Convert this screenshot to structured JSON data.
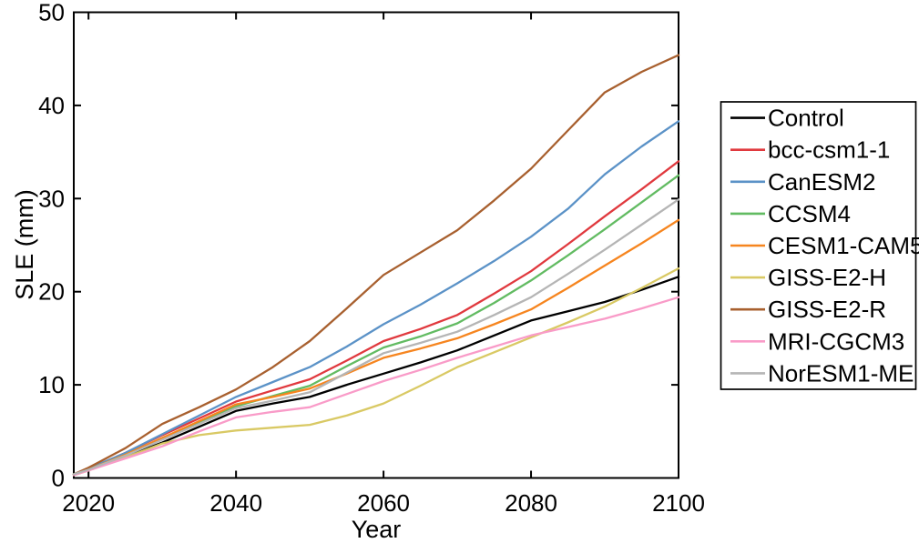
{
  "figure": {
    "background": "#ffffff",
    "axis_color": "#000000"
  },
  "chart_data": {
    "type": "line",
    "title": "",
    "xlabel": "Year",
    "ylabel": "SLE (mm)",
    "xlim": [
      2018,
      2100
    ],
    "ylim": [
      0,
      50
    ],
    "x_ticks": [
      "2020",
      "2040",
      "2060",
      "2080",
      "2100"
    ],
    "x_tick_values": [
      2020,
      2040,
      2060,
      2080,
      2100
    ],
    "y_ticks": [
      "0",
      "10",
      "20",
      "30",
      "40",
      "50"
    ],
    "y_tick_values": [
      0,
      10,
      20,
      30,
      40,
      50
    ],
    "grid": false,
    "legend_position": "outside-right",
    "x": [
      2018,
      2020,
      2025,
      2030,
      2035,
      2040,
      2045,
      2050,
      2055,
      2060,
      2065,
      2070,
      2075,
      2080,
      2085,
      2090,
      2095,
      2100
    ],
    "series": [
      {
        "name": "Control",
        "color": "#000000",
        "values": [
          0.4,
          0.9,
          2.3,
          3.8,
          5.5,
          7.2,
          8.0,
          8.7,
          10.0,
          11.2,
          12.4,
          13.7,
          15.3,
          16.9,
          17.9,
          18.9,
          20.2,
          21.6
        ]
      },
      {
        "name": "bcc-csm1-1",
        "color": "#e0393e",
        "values": [
          0.4,
          1.0,
          2.7,
          4.6,
          6.4,
          8.2,
          9.4,
          10.6,
          12.6,
          14.7,
          16.0,
          17.5,
          19.8,
          22.2,
          25.1,
          28.1,
          31.0,
          34.0
        ]
      },
      {
        "name": "CanESM2",
        "color": "#5b92c7",
        "values": [
          0.4,
          1.0,
          2.7,
          4.7,
          6.7,
          8.7,
          10.3,
          11.9,
          14.1,
          16.5,
          18.6,
          20.9,
          23.3,
          25.9,
          28.9,
          32.6,
          35.6,
          38.3
        ]
      },
      {
        "name": "CCSM4",
        "color": "#62bb62",
        "values": [
          0.4,
          0.9,
          2.5,
          4.3,
          6.0,
          7.7,
          8.8,
          9.9,
          12.0,
          14.0,
          15.2,
          16.6,
          18.8,
          21.2,
          23.9,
          26.7,
          29.6,
          32.5
        ]
      },
      {
        "name": "CESM1-CAM5",
        "color": "#f6851f",
        "values": [
          0.4,
          0.9,
          2.5,
          4.3,
          6.1,
          7.9,
          8.7,
          9.6,
          11.2,
          12.9,
          13.9,
          15.0,
          16.5,
          18.1,
          20.4,
          22.8,
          25.2,
          27.7
        ]
      },
      {
        "name": "GISS-E2-H",
        "color": "#d9c964",
        "values": [
          0.3,
          0.8,
          2.2,
          3.7,
          4.6,
          5.1,
          5.4,
          5.7,
          6.7,
          8.0,
          9.9,
          11.9,
          13.5,
          15.1,
          16.7,
          18.4,
          20.4,
          22.5
        ]
      },
      {
        "name": "GISS-E2-R",
        "color": "#a8602f",
        "values": [
          0.4,
          1.1,
          3.2,
          5.8,
          7.6,
          9.5,
          11.9,
          14.7,
          18.2,
          21.8,
          24.2,
          26.6,
          29.8,
          33.2,
          37.3,
          41.4,
          43.6,
          45.4
        ]
      },
      {
        "name": "MRI-CGCM3",
        "color": "#f99bc8",
        "values": [
          0.3,
          0.8,
          2.1,
          3.4,
          5.0,
          6.5,
          7.1,
          7.6,
          9.0,
          10.4,
          11.6,
          12.9,
          14.1,
          15.3,
          16.2,
          17.1,
          18.2,
          19.4
        ]
      },
      {
        "name": "NorESM1-ME",
        "color": "#b5b5b5",
        "values": [
          0.4,
          0.9,
          2.4,
          4.1,
          5.8,
          7.5,
          8.3,
          9.2,
          11.3,
          13.4,
          14.5,
          15.7,
          17.5,
          19.4,
          21.9,
          24.5,
          27.2,
          29.9
        ]
      }
    ]
  }
}
